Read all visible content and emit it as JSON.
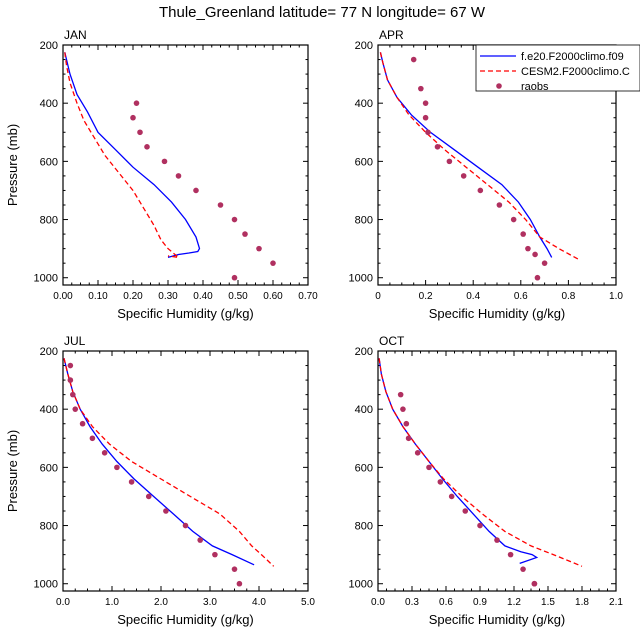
{
  "title": "Thule_Greenland  latitude= 77 N longitude= 67 W",
  "colors": {
    "model1": "#0000ff",
    "model2": "#ff0000",
    "obs": "#b03060",
    "axis": "#000000"
  },
  "chart_data": [
    {
      "type": "line",
      "panel_label": "JAN",
      "xlabel": "Specific Humidity (g/kg)",
      "ylabel": "Pressure (mb)",
      "xlim": [
        0,
        0.7
      ],
      "ylim": [
        1025,
        200
      ],
      "xticks": [
        "0.00",
        "0.10",
        "0.20",
        "0.30",
        "0.40",
        "0.50",
        "0.60",
        "0.70"
      ],
      "xtick_values": [
        0,
        0.1,
        0.2,
        0.3,
        0.4,
        0.5,
        0.6,
        0.7
      ],
      "yticks": [
        "200",
        "400",
        "600",
        "800",
        "1000"
      ],
      "ytick_values": [
        200,
        400,
        600,
        800,
        1000
      ],
      "series": [
        {
          "name": "f.e20.F2000climo.f09",
          "style": "solid",
          "x": [
            0.005,
            0.01,
            0.02,
            0.04,
            0.07,
            0.1,
            0.15,
            0.2,
            0.26,
            0.31,
            0.35,
            0.38,
            0.39,
            0.385,
            0.36,
            0.33,
            0.3
          ],
          "y": [
            225,
            250,
            300,
            370,
            430,
            500,
            560,
            620,
            680,
            740,
            800,
            860,
            900,
            910,
            915,
            920,
            930
          ]
        },
        {
          "name": "CESM2.F2000climo.C",
          "style": "dashed",
          "x": [
            0.005,
            0.01,
            0.02,
            0.04,
            0.06,
            0.09,
            0.12,
            0.16,
            0.2,
            0.23,
            0.26,
            0.28,
            0.3,
            0.32,
            0.33,
            0.3
          ],
          "y": [
            225,
            270,
            330,
            400,
            460,
            520,
            580,
            640,
            700,
            760,
            820,
            870,
            900,
            920,
            930,
            925
          ]
        },
        {
          "name": "raobs",
          "style": "markers",
          "x": [
            0.21,
            0.2,
            0.22,
            0.24,
            0.29,
            0.33,
            0.38,
            0.45,
            0.49,
            0.52,
            0.56,
            0.6,
            0.49
          ],
          "y": [
            400,
            450,
            500,
            550,
            600,
            650,
            700,
            750,
            800,
            850,
            900,
            950,
            1000
          ]
        }
      ]
    },
    {
      "type": "line",
      "panel_label": "APR",
      "xlabel": "Specific Humidity (g/kg)",
      "ylabel": "",
      "xlim": [
        0,
        1.0
      ],
      "ylim": [
        1025,
        200
      ],
      "xticks": [
        "0",
        "0.2",
        "0.4",
        "0.6",
        "0.8",
        "1.0"
      ],
      "xtick_values": [
        0,
        0.2,
        0.4,
        0.6,
        0.8,
        1.0
      ],
      "yticks": [
        "200",
        "400",
        "600",
        "800",
        "1000"
      ],
      "ytick_values": [
        200,
        400,
        600,
        800,
        1000
      ],
      "series": [
        {
          "name": "f.e20.F2000climo.f09",
          "style": "solid",
          "x": [
            0.01,
            0.02,
            0.04,
            0.08,
            0.14,
            0.22,
            0.32,
            0.42,
            0.52,
            0.59,
            0.64,
            0.68,
            0.71,
            0.73
          ],
          "y": [
            225,
            260,
            320,
            380,
            440,
            500,
            560,
            620,
            680,
            740,
            800,
            860,
            900,
            930
          ]
        },
        {
          "name": "CESM2.F2000climo.C",
          "style": "dashed",
          "x": [
            0.01,
            0.02,
            0.04,
            0.08,
            0.13,
            0.2,
            0.28,
            0.37,
            0.46,
            0.55,
            0.62,
            0.68,
            0.76,
            0.85
          ],
          "y": [
            225,
            260,
            320,
            380,
            440,
            500,
            560,
            620,
            680,
            740,
            800,
            860,
            900,
            940
          ]
        },
        {
          "name": "raobs",
          "style": "markers",
          "x": [
            0.15,
            0.18,
            0.2,
            0.2,
            0.21,
            0.25,
            0.3,
            0.36,
            0.43,
            0.51,
            0.57,
            0.61,
            0.63,
            0.66,
            0.7,
            0.67
          ],
          "y": [
            250,
            350,
            400,
            450,
            500,
            550,
            600,
            650,
            700,
            750,
            800,
            850,
            900,
            920,
            950,
            1000
          ]
        }
      ]
    },
    {
      "type": "line",
      "panel_label": "JUL",
      "xlabel": "Specific Humidity (g/kg)",
      "ylabel": "Pressure (mb)",
      "xlim": [
        0,
        5.0
      ],
      "ylim": [
        1025,
        200
      ],
      "xticks": [
        "0.0",
        "1.0",
        "2.0",
        "3.0",
        "4.0",
        "5.0"
      ],
      "xtick_values": [
        0,
        1,
        2,
        3,
        4,
        5
      ],
      "yticks": [
        "200",
        "400",
        "600",
        "800",
        "1000"
      ],
      "ytick_values": [
        200,
        400,
        600,
        800,
        1000
      ],
      "series": [
        {
          "name": "f.e20.F2000climo.f09",
          "style": "solid",
          "x": [
            0.02,
            0.1,
            0.2,
            0.35,
            0.55,
            0.8,
            1.1,
            1.45,
            1.85,
            2.25,
            2.65,
            3.05,
            3.45,
            3.9
          ],
          "y": [
            225,
            280,
            340,
            400,
            460,
            520,
            580,
            640,
            700,
            760,
            820,
            870,
            900,
            935
          ]
        },
        {
          "name": "CESM2.F2000climo.C",
          "style": "dashed",
          "x": [
            0.02,
            0.1,
            0.2,
            0.35,
            0.6,
            0.95,
            1.4,
            2.0,
            2.6,
            3.2,
            3.6,
            3.85,
            4.05,
            4.3
          ],
          "y": [
            225,
            280,
            340,
            400,
            460,
            520,
            580,
            640,
            700,
            760,
            820,
            870,
            900,
            940
          ]
        },
        {
          "name": "raobs",
          "style": "markers",
          "x": [
            0.15,
            0.15,
            0.2,
            0.25,
            0.4,
            0.6,
            0.85,
            1.1,
            1.4,
            1.75,
            2.1,
            2.5,
            2.8,
            3.1,
            3.5,
            3.6
          ],
          "y": [
            250,
            300,
            350,
            400,
            450,
            500,
            550,
            600,
            650,
            700,
            750,
            800,
            850,
            900,
            950,
            1000
          ]
        }
      ]
    },
    {
      "type": "line",
      "panel_label": "OCT",
      "xlabel": "Specific Humidity (g/kg)",
      "ylabel": "",
      "xlim": [
        0,
        2.1
      ],
      "ylim": [
        1025,
        200
      ],
      "xticks": [
        "0.0",
        "0.3",
        "0.6",
        "0.9",
        "1.2",
        "1.5",
        "1.8",
        "2.1"
      ],
      "xtick_values": [
        0,
        0.3,
        0.6,
        0.9,
        1.2,
        1.5,
        1.8,
        2.1
      ],
      "yticks": [
        "200",
        "400",
        "600",
        "800",
        "1000"
      ],
      "ytick_values": [
        200,
        400,
        600,
        800,
        1000
      ],
      "series": [
        {
          "name": "f.e20.F2000climo.f09",
          "style": "solid",
          "x": [
            0.01,
            0.03,
            0.07,
            0.13,
            0.22,
            0.33,
            0.45,
            0.57,
            0.7,
            0.84,
            0.98,
            1.12,
            1.26,
            1.36,
            1.4,
            1.25
          ],
          "y": [
            225,
            280,
            340,
            400,
            460,
            520,
            580,
            640,
            700,
            760,
            820,
            870,
            890,
            900,
            910,
            930
          ]
        },
        {
          "name": "CESM2.F2000climo.C",
          "style": "dashed",
          "x": [
            0.01,
            0.03,
            0.07,
            0.13,
            0.22,
            0.33,
            0.45,
            0.58,
            0.74,
            0.92,
            1.12,
            1.35,
            1.58,
            1.8
          ],
          "y": [
            225,
            280,
            340,
            400,
            460,
            520,
            580,
            640,
            700,
            760,
            820,
            870,
            905,
            940
          ]
        },
        {
          "name": "raobs",
          "style": "markers",
          "x": [
            0.2,
            0.22,
            0.25,
            0.27,
            0.35,
            0.45,
            0.55,
            0.65,
            0.77,
            0.9,
            1.05,
            1.17,
            1.28,
            1.38,
            1.38
          ],
          "y": [
            350,
            400,
            450,
            500,
            550,
            600,
            650,
            700,
            750,
            800,
            850,
            900,
            950,
            1000,
            1000
          ]
        }
      ]
    }
  ],
  "legend": {
    "location": "top-right of APR panel",
    "entries": [
      {
        "label": "f.e20.F2000climo.f09",
        "style": "solid"
      },
      {
        "label": "CESM2.F2000climo.C",
        "style": "dashed"
      },
      {
        "label": "raobs",
        "style": "markers"
      }
    ]
  }
}
